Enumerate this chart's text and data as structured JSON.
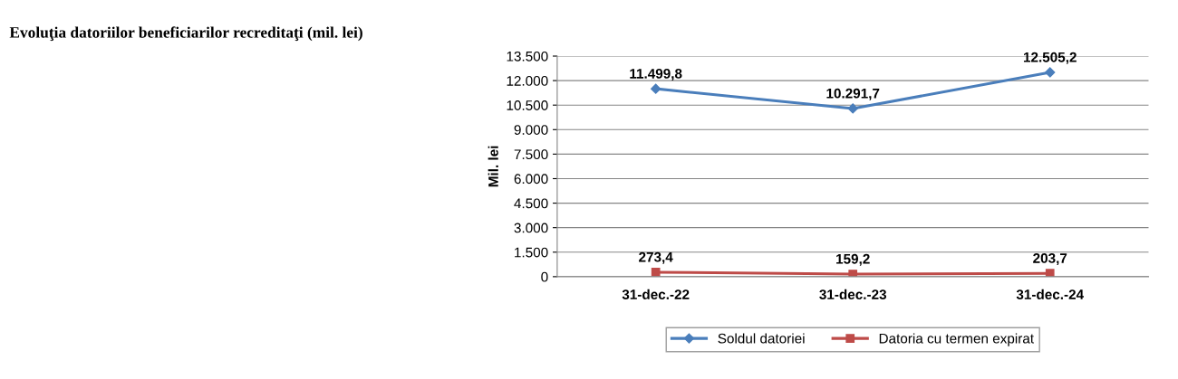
{
  "chart_data": {
    "type": "line",
    "title": "Evoluţia datoriilor beneficiarilor recreditaţi (mil. lei)",
    "ylabel": "Mil. lei",
    "categories": [
      "31-dec.-22",
      "31-dec.-23",
      "31-dec.-24"
    ],
    "series": [
      {
        "name": "Soldul datoriei",
        "color": "#4a7ebb",
        "marker": "diamond",
        "values": [
          11499.8,
          10291.7,
          12505.2
        ],
        "value_labels": [
          "11.499,8",
          "10.291,7",
          "12.505,2"
        ]
      },
      {
        "name": "Datoria cu termen expirat",
        "color": "#be4b48",
        "marker": "square",
        "values": [
          273.4,
          159.2,
          203.7
        ],
        "value_labels": [
          "273,4",
          "159,2",
          "203,7"
        ]
      }
    ],
    "ylim": [
      0,
      13500
    ],
    "yticks": [
      0,
      {
        "value": 1500,
        "label": "1.500"
      },
      {
        "value": 3000,
        "label": "3.000"
      },
      {
        "value": 4500,
        "label": "4.500"
      },
      {
        "value": 6000,
        "label": "6.000"
      },
      {
        "value": 7500,
        "label": "7.500"
      },
      {
        "value": 9000,
        "label": "9.000"
      },
      {
        "value": 10500,
        "label": "10.500"
      },
      {
        "value": 12000,
        "label": "12.000"
      },
      {
        "value": 13500,
        "label": "13.500"
      }
    ],
    "grid": "y",
    "legend": "bottom",
    "line_style": "solid"
  }
}
